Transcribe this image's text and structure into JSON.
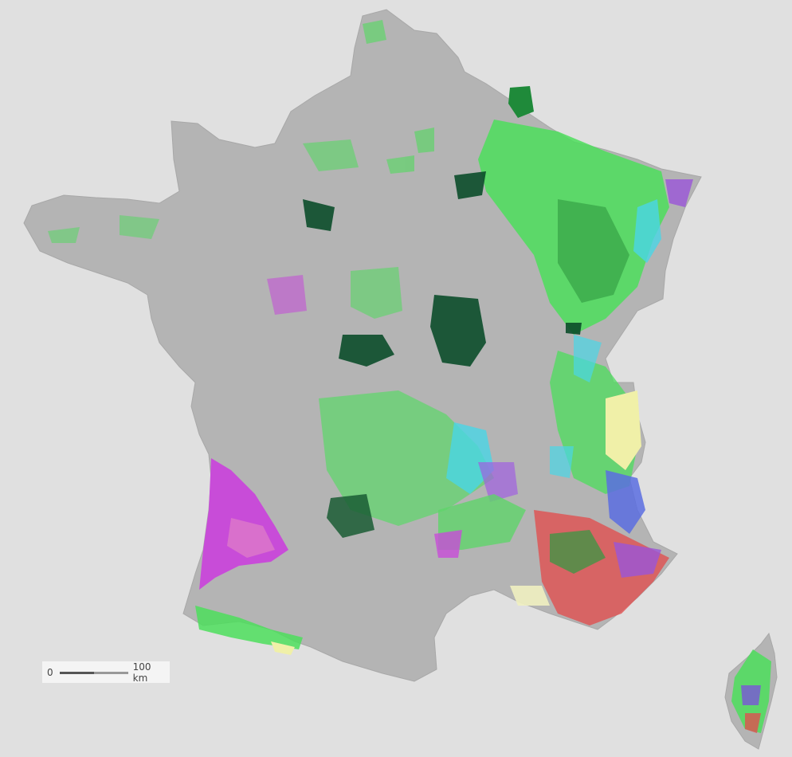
{
  "map": {
    "background_color": "#e0e0e0",
    "land_color": "#b4b4b4",
    "legend_colors": {
      "deciduous": "#4cde5c",
      "conifer_dark": "#0b4d2a",
      "maritime_pine": "#c84cd8",
      "mixed_blue": "#5a6de0",
      "cyan": "#4ad6e6",
      "red": "#e05050",
      "yellow_pale": "#f0f0a8"
    }
  },
  "scale_bar": {
    "start_label": "0",
    "end_label": "100 km"
  }
}
